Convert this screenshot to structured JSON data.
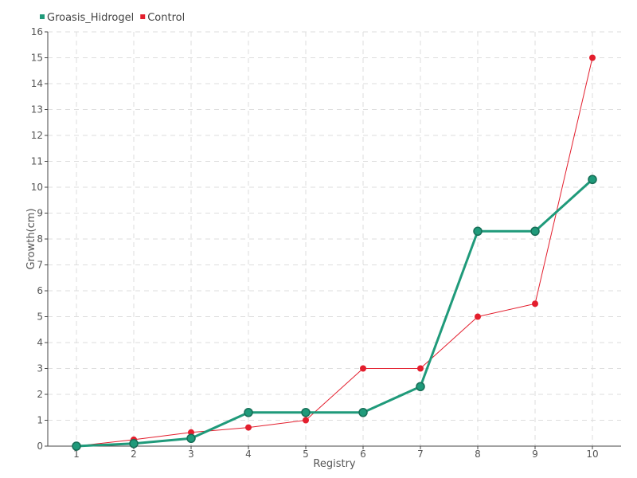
{
  "chart_data": {
    "type": "line",
    "title": "",
    "xlabel": "Registry",
    "ylabel": "Growth(cm)",
    "categories": [
      "1",
      "2",
      "3",
      "4",
      "5",
      "6",
      "7",
      "8",
      "9",
      "10"
    ],
    "ylim": [
      0,
      16
    ],
    "yticks": [
      "0",
      "1",
      "2",
      "3",
      "4",
      "5",
      "6",
      "7",
      "8",
      "9",
      "10",
      "11",
      "12",
      "13",
      "14",
      "15",
      "16"
    ],
    "grid": true,
    "legend_position": "top-left",
    "series": [
      {
        "name": "Groasis_Hidrogel",
        "color": "#1f9a7a",
        "values": [
          0,
          0.1,
          0.3,
          1.3,
          1.3,
          1.3,
          2.3,
          8.3,
          8.3,
          10.3
        ]
      },
      {
        "name": "Control",
        "color": "#e31e2d",
        "values": [
          0,
          0.25,
          0.53,
          0.72,
          1.0,
          3.0,
          3.0,
          5.0,
          5.5,
          15.0
        ]
      }
    ]
  }
}
